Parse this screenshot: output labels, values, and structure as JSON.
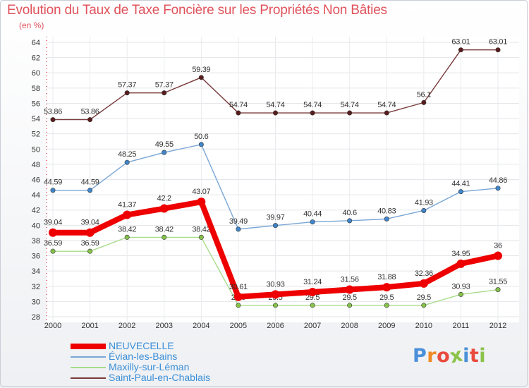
{
  "title": "Evolution du Taux de Taxe Foncière sur les Propriétés Non Bâties",
  "unit_label": "(en %)",
  "logo": {
    "text": "ProXiti",
    "letters": [
      "P",
      "r",
      "o",
      "x",
      "i",
      "t",
      "i"
    ],
    "letter_colors": [
      "#4a90d9",
      "#f08a24",
      "#e94b3c",
      "#8bc34a",
      "#4a90d9",
      "#e94b3c",
      "#8bc34a"
    ]
  },
  "chart_data": {
    "type": "line",
    "title": "Evolution du Taux de Taxe Foncière sur les Propriétés Non Bâties",
    "ylabel": "(en %)",
    "xlabel": "",
    "x": [
      "2000",
      "2001",
      "2002",
      "2003",
      "2004",
      "2005",
      "2006",
      "2007",
      "2008",
      "2009",
      "2010",
      "2011",
      "2012"
    ],
    "ylim": [
      28,
      64
    ],
    "yticks": [
      28,
      30,
      32,
      34,
      36,
      38,
      40,
      42,
      44,
      46,
      48,
      50,
      52,
      54,
      56,
      58,
      60,
      62,
      64
    ],
    "grid": true,
    "legend_position": "bottom-left",
    "series": [
      {
        "name": "NEUVECELLE",
        "color": "#ee0000",
        "marker": "#ee0000",
        "emphasis": true,
        "values": [
          39.04,
          39.04,
          41.37,
          42.2,
          43.07,
          30.61,
          30.93,
          31.24,
          31.56,
          31.88,
          32.36,
          34.95,
          36
        ],
        "labels": [
          "39.04",
          "39.04",
          "41.37",
          "42.2",
          "43.07",
          "30.61",
          "30.93",
          "31.24",
          "31.56",
          "31.88",
          "32.36",
          "34.95",
          "36"
        ]
      },
      {
        "name": "Évian-les-Bains",
        "color": "#7aa6d6",
        "marker": "#3f86cc",
        "emphasis": false,
        "values": [
          44.59,
          44.59,
          48.25,
          49.55,
          50.6,
          39.49,
          39.97,
          40.44,
          40.6,
          40.83,
          41.93,
          44.41,
          44.86
        ],
        "labels": [
          "44.59",
          "44.59",
          "48.25",
          "49.55",
          "50.6",
          "39.49",
          "39.97",
          "40.44",
          "40.6",
          "40.83",
          "41.93",
          "44.41",
          "44.86"
        ]
      },
      {
        "name": "Maxilly-sur-Léman",
        "color": "#a8dc8a",
        "marker": "#86c24a",
        "emphasis": false,
        "values": [
          36.59,
          36.59,
          38.42,
          38.42,
          38.42,
          29.5,
          29.5,
          29.5,
          29.5,
          29.5,
          29.5,
          30.93,
          31.55
        ],
        "labels": [
          "36.59",
          "36.59",
          "38.42",
          "38.42",
          "38.42",
          "29.5",
          "29.5",
          "29.5",
          "29.5",
          "29.5",
          "29.5",
          "30.93",
          "31.55"
        ]
      },
      {
        "name": "Saint-Paul-en-Chablais",
        "color": "#7a3a3a",
        "marker": "#5a1d1d",
        "emphasis": false,
        "values": [
          53.86,
          53.86,
          57.37,
          57.37,
          59.39,
          54.74,
          54.74,
          54.74,
          54.74,
          54.74,
          56.1,
          63.01,
          63.01
        ],
        "labels": [
          "53.86",
          "53.86",
          "57.37",
          "57.37",
          "59.39",
          "54.74",
          "54.74",
          "54.74",
          "54.74",
          "54.74",
          "56.1",
          "63.01",
          "63.01"
        ]
      }
    ]
  }
}
